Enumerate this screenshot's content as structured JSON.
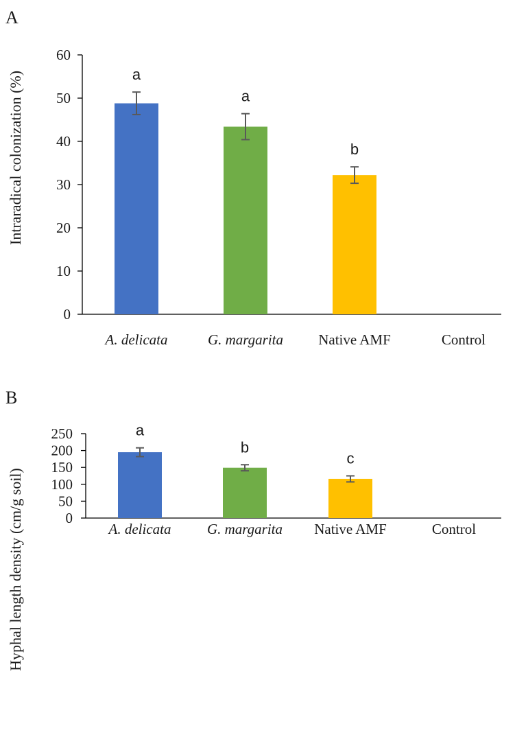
{
  "chart_data": [
    {
      "panel_label": "A",
      "type": "bar",
      "categories": [
        "A. delicata",
        "G. margarita",
        "Native AMF",
        "Control"
      ],
      "italic_categories": [
        true,
        true,
        false,
        false
      ],
      "values": [
        48.8,
        43.4,
        32.2,
        0
      ],
      "errors": [
        2.6,
        3.0,
        1.9,
        0
      ],
      "significance": [
        "a",
        "a",
        "b",
        ""
      ],
      "colors": [
        "#4472C4",
        "#70AD47",
        "#FFC000",
        "#4472C4"
      ],
      "ylabel": "Intraradical colonization (%)",
      "xlabel": "",
      "ylim": [
        0,
        60
      ],
      "yticks": [
        0,
        10,
        20,
        30,
        40,
        50,
        60
      ],
      "grid": false
    },
    {
      "panel_label": "B",
      "type": "bar",
      "categories": [
        "A. delicata",
        "G. margarita",
        "Native AMF",
        "Control"
      ],
      "italic_categories": [
        true,
        true,
        false,
        false
      ],
      "values": [
        195,
        149,
        116,
        0
      ],
      "errors": [
        13,
        9,
        9,
        0
      ],
      "significance": [
        "a",
        "b",
        "c",
        ""
      ],
      "colors": [
        "#4472C4",
        "#70AD47",
        "#FFC000",
        "#4472C4"
      ],
      "ylabel": "Hyphal length density (cm/g soil)",
      "xlabel": "",
      "ylim": [
        0,
        250
      ],
      "yticks": [
        0,
        50,
        100,
        150,
        200,
        250
      ],
      "grid": false
    }
  ]
}
